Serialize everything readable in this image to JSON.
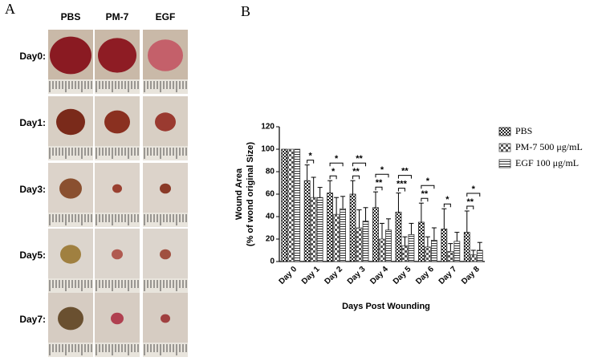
{
  "panel_a": {
    "label": "A",
    "columns": [
      "PBS",
      "PM-7",
      "EGF"
    ],
    "rows": [
      "Day0:",
      "Day1:",
      "Day3:",
      "Day5:",
      "Day7:"
    ]
  },
  "panel_b_label": "B",
  "chart_data": {
    "type": "bar",
    "xlabel": "Days Post Wounding",
    "ylabel": [
      "Wound Area",
      "(% of wond original Size)"
    ],
    "categories": [
      "Day 0",
      "Day 1",
      "Day 2",
      "Day 3",
      "Day 4",
      "Day 5",
      "Day 6",
      "Day 7",
      "Day 8"
    ],
    "series": [
      {
        "name": "PBS",
        "color": "#222222",
        "values": [
          100,
          72,
          61,
          60,
          48,
          44,
          35,
          29,
          26
        ],
        "errors": [
          0,
          14,
          11,
          12,
          14,
          17,
          17,
          18,
          19
        ]
      },
      {
        "name": "PM-7 500 μg/mL",
        "color": "#555555",
        "values": [
          100,
          57,
          42,
          30,
          20,
          14,
          13,
          9,
          6
        ],
        "errors": [
          0,
          18,
          15,
          16,
          14,
          8,
          9,
          7,
          4
        ],
        "significance": [
          null,
          "*",
          "*",
          "**",
          "**",
          "***",
          "**",
          "*",
          "**"
        ]
      },
      {
        "name": "EGF 100 μg/mL",
        "color": "#333333",
        "values": [
          100,
          57,
          47,
          36,
          28,
          24,
          19,
          18,
          10
        ],
        "errors": [
          0,
          9,
          11,
          12,
          10,
          10,
          11,
          8,
          7
        ],
        "significance": [
          null,
          null,
          "*",
          "**",
          "*",
          "**",
          "*",
          null,
          "*"
        ]
      }
    ],
    "ylim": [
      0,
      120
    ],
    "yticks": [
      0,
      20,
      40,
      60,
      80,
      100,
      120
    ],
    "legend": "right"
  }
}
